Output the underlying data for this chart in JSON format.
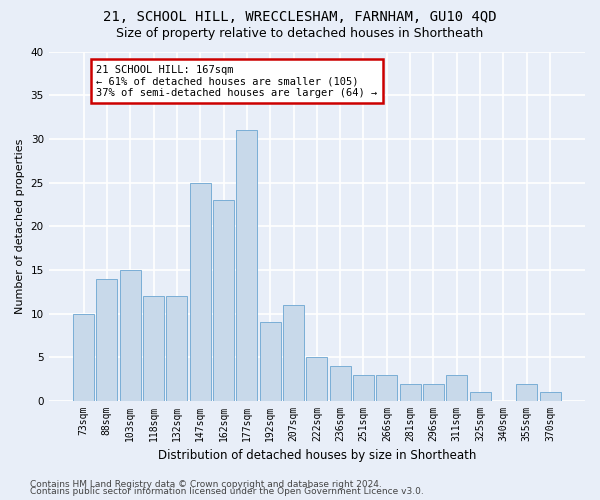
{
  "title1": "21, SCHOOL HILL, WRECCLESHAM, FARNHAM, GU10 4QD",
  "title2": "Size of property relative to detached houses in Shortheath",
  "xlabel": "Distribution of detached houses by size in Shortheath",
  "ylabel": "Number of detached properties",
  "categories": [
    "73sqm",
    "88sqm",
    "103sqm",
    "118sqm",
    "132sqm",
    "147sqm",
    "162sqm",
    "177sqm",
    "192sqm",
    "207sqm",
    "222sqm",
    "236sqm",
    "251sqm",
    "266sqm",
    "281sqm",
    "296sqm",
    "311sqm",
    "325sqm",
    "340sqm",
    "355sqm",
    "370sqm"
  ],
  "values": [
    10,
    14,
    15,
    12,
    12,
    25,
    23,
    31,
    9,
    11,
    5,
    4,
    3,
    3,
    2,
    2,
    3,
    1,
    0,
    2,
    1
  ],
  "bar_color": "#c8d9ea",
  "bar_edge_color": "#7aaed6",
  "highlight_index": 7,
  "background_color": "#e8eef8",
  "grid_color": "#ffffff",
  "annotation_text": "21 SCHOOL HILL: 167sqm\n← 61% of detached houses are smaller (105)\n37% of semi-detached houses are larger (64) →",
  "annotation_box_color": "#ffffff",
  "annotation_box_edge": "#cc0000",
  "footnote1": "Contains HM Land Registry data © Crown copyright and database right 2024.",
  "footnote2": "Contains public sector information licensed under the Open Government Licence v3.0.",
  "ylim": [
    0,
    40
  ],
  "yticks": [
    0,
    5,
    10,
    15,
    20,
    25,
    30,
    35,
    40
  ],
  "title1_fontsize": 10,
  "title2_fontsize": 9,
  "xlabel_fontsize": 8.5,
  "ylabel_fontsize": 8,
  "tick_fontsize": 7,
  "annotation_fontsize": 7.5,
  "footnote_fontsize": 6.5
}
